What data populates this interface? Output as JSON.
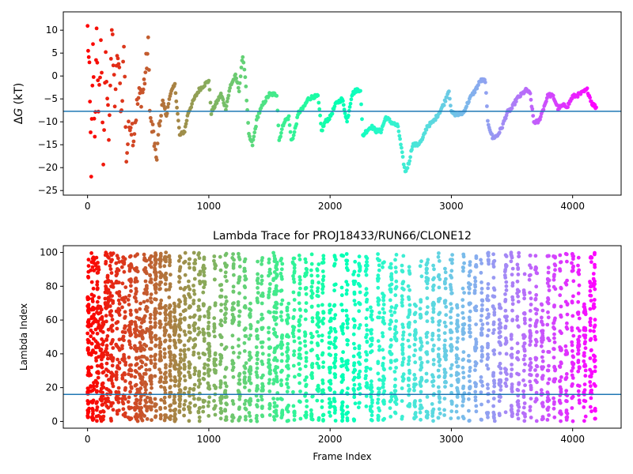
{
  "chart_data": [
    {
      "type": "scatter",
      "title": "",
      "ylabel_prefix": "Δ",
      "ylabel_var": "G",
      "ylabel_suffix": " (kT)",
      "xlabel": "",
      "xlim": [
        -200,
        4400
      ],
      "ylim": [
        -26,
        14
      ],
      "xticks": [
        0,
        1000,
        2000,
        3000,
        4000
      ],
      "yticks": [
        10,
        5,
        0,
        -5,
        -10,
        -15,
        -20,
        -25
      ],
      "hline": -7.7,
      "hline_color": "#1f77b4",
      "colormap": "rainbow",
      "x_count_max": 4200,
      "series": [
        {
          "path": [
            [
              0,
              10
            ],
            [
              15,
              0
            ],
            [
              30,
              -20
            ],
            [
              45,
              5
            ],
            [
              60,
              -15
            ],
            [
              75,
              12
            ],
            [
              90,
              -10
            ],
            [
              110,
              8
            ],
            [
              130,
              -18
            ],
            [
              150,
              3
            ],
            [
              175,
              -12
            ],
            [
              200,
              10
            ],
            [
              225,
              -5
            ],
            [
              250,
              5
            ],
            [
              280,
              -8
            ],
            [
              300,
              7
            ],
            [
              320,
              -18
            ],
            [
              350,
              -9
            ],
            [
              380,
              -13
            ],
            [
              400,
              -8
            ],
            [
              420,
              -5
            ],
            [
              460,
              -3
            ],
            [
              500,
              6
            ],
            [
              520,
              -10
            ],
            [
              550,
              -14
            ],
            [
              560,
              -19
            ],
            [
              600,
              -10
            ],
            [
              620,
              -5
            ],
            [
              650,
              -9
            ],
            [
              680,
              -4
            ],
            [
              720,
              -2
            ],
            [
              760,
              -13
            ],
            [
              800,
              -12
            ],
            [
              830,
              -8
            ],
            [
              880,
              -5
            ],
            [
              920,
              -3
            ],
            [
              960,
              -2
            ],
            [
              1000,
              -1
            ],
            [
              1020,
              -8
            ],
            [
              1060,
              -6
            ],
            [
              1100,
              -4
            ],
            [
              1140,
              -7
            ],
            [
              1180,
              -2
            ],
            [
              1220,
              0
            ],
            [
              1250,
              -3
            ],
            [
              1280,
              4.5
            ],
            [
              1300,
              0
            ],
            [
              1330,
              -13
            ],
            [
              1360,
              -15
            ],
            [
              1400,
              -9
            ],
            [
              1450,
              -6
            ],
            [
              1500,
              -4
            ],
            [
              1560,
              -4
            ],
            [
              1580,
              -14
            ],
            [
              1620,
              -10
            ],
            [
              1660,
              -9
            ],
            [
              1680,
              -14
            ],
            [
              1700,
              -13
            ],
            [
              1740,
              -8
            ],
            [
              1780,
              -7
            ],
            [
              1820,
              -5
            ],
            [
              1860,
              -4.5
            ],
            [
              1900,
              -4.5
            ],
            [
              1930,
              -12
            ],
            [
              1960,
              -10
            ],
            [
              2000,
              -9
            ],
            [
              2050,
              -6
            ],
            [
              2100,
              -5
            ],
            [
              2140,
              -10
            ],
            [
              2180,
              -4
            ],
            [
              2220,
              -3
            ],
            [
              2250,
              -3
            ],
            [
              2270,
              -13
            ],
            [
              2300,
              -12
            ],
            [
              2340,
              -11
            ],
            [
              2380,
              -12
            ],
            [
              2420,
              -12
            ],
            [
              2460,
              -9
            ],
            [
              2500,
              -10
            ],
            [
              2560,
              -11
            ],
            [
              2600,
              -18
            ],
            [
              2620,
              -21
            ],
            [
              2650,
              -19
            ],
            [
              2680,
              -15
            ],
            [
              2720,
              -15
            ],
            [
              2760,
              -14
            ],
            [
              2800,
              -11
            ],
            [
              2850,
              -10
            ],
            [
              2900,
              -8
            ],
            [
              2940,
              -6
            ],
            [
              2980,
              -3
            ],
            [
              3000,
              -8
            ],
            [
              3050,
              -8.5
            ],
            [
              3100,
              -8
            ],
            [
              3150,
              -5
            ],
            [
              3200,
              -3
            ],
            [
              3240,
              -1
            ],
            [
              3280,
              -1
            ],
            [
              3300,
              -10
            ],
            [
              3340,
              -13.5
            ],
            [
              3380,
              -13
            ],
            [
              3420,
              -11
            ],
            [
              3460,
              -8
            ],
            [
              3500,
              -7
            ],
            [
              3540,
              -5
            ],
            [
              3580,
              -4
            ],
            [
              3620,
              -3
            ],
            [
              3650,
              -4
            ],
            [
              3680,
              -10
            ],
            [
              3720,
              -10
            ],
            [
              3760,
              -7
            ],
            [
              3800,
              -4
            ],
            [
              3840,
              -4.5
            ],
            [
              3880,
              -7
            ],
            [
              3920,
              -6.5
            ],
            [
              3960,
              -6.5
            ],
            [
              4000,
              -4.5
            ],
            [
              4060,
              -4
            ],
            [
              4120,
              -3
            ],
            [
              4160,
              -6
            ],
            [
              4200,
              -7
            ]
          ]
        }
      ]
    },
    {
      "type": "scatter",
      "title": "Lambda Trace for PROJ18433/RUN66/CLONE12",
      "xlabel": "Frame Index",
      "ylabel": "Lambda Index",
      "xlim": [
        -200,
        4400
      ],
      "ylim": [
        -4,
        104
      ],
      "xticks": [
        0,
        1000,
        2000,
        3000,
        4000
      ],
      "yticks": [
        0,
        20,
        40,
        60,
        80,
        100
      ],
      "hline": 16,
      "hline_color": "#1f77b4",
      "colormap": "rainbow",
      "x_count_max": 4200,
      "columns": [
        0,
        40,
        80,
        120,
        160,
        200,
        250,
        300,
        350,
        400,
        440,
        480,
        520,
        560,
        600,
        640,
        680,
        720,
        760,
        800,
        840,
        880,
        920,
        960,
        1000,
        1050,
        1100,
        1140,
        1200,
        1250,
        1300,
        1340,
        1400,
        1440,
        1500,
        1540,
        1560,
        1600,
        1650,
        1700,
        1750,
        1800,
        1850,
        1900,
        1940,
        2000,
        2040,
        2100,
        2140,
        2200,
        2240,
        2300,
        2340,
        2400,
        2440,
        2500,
        2540,
        2600,
        2650,
        2700,
        2750,
        2800,
        2850,
        2900,
        2950,
        3000,
        3050,
        3100,
        3150,
        3200,
        3250,
        3300,
        3350,
        3400,
        3450,
        3500,
        3550,
        3600,
        3650,
        3700,
        3750,
        3800,
        3850,
        3900,
        3950,
        4000,
        4050,
        4100,
        4150,
        4180
      ]
    }
  ]
}
